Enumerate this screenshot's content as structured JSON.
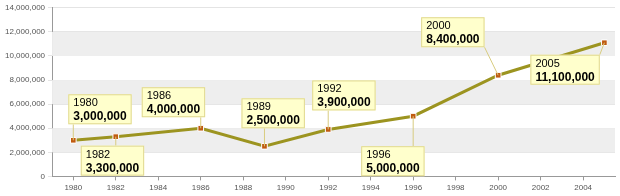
{
  "chart_data": {
    "type": "line",
    "x": [
      1980,
      1982,
      1986,
      1989,
      1992,
      1996,
      2000,
      2005
    ],
    "values": [
      3000000,
      3300000,
      4000000,
      2500000,
      3900000,
      5000000,
      8400000,
      11100000
    ],
    "value_labels": [
      "3,000,000",
      "3,300,000",
      "4,000,000",
      "2,500,000",
      "3,900,000",
      "5,000,000",
      "8,400,000",
      "11,100,000"
    ],
    "data_labels": true,
    "color": "#9c9420",
    "marker": "square",
    "xlim": [
      1979,
      2005.5
    ],
    "xticks": [
      1980,
      1982,
      1984,
      1986,
      1988,
      1990,
      1992,
      1994,
      1996,
      1998,
      2000,
      2002,
      2004
    ],
    "ylim": [
      0,
      14000000
    ],
    "yticks": [
      0,
      {
        "value": 2000000,
        "label": "2,000,000"
      },
      {
        "value": 4000000,
        "label": "4,000,000"
      },
      {
        "value": 6000000,
        "label": "6,000,000"
      },
      {
        "value": 8000000,
        "label": "8,000,000"
      },
      {
        "value": 10000000,
        "label": "10,000,000"
      },
      {
        "value": 12000000,
        "label": "12,000,000"
      },
      {
        "value": 14000000,
        "label": "14,000,000"
      }
    ],
    "grid": true
  }
}
